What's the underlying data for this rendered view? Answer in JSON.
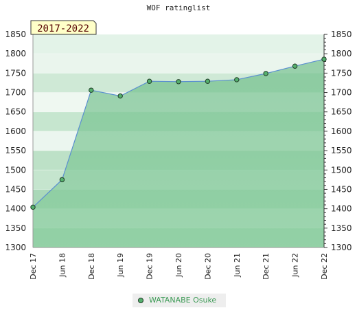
{
  "title": "WOF ratinglist",
  "badge": "2017-2022",
  "colors": {
    "fill": "#7cc494",
    "line": "#5b8fd0",
    "marker": "#55b06e",
    "badge_bg": "#ffffc8"
  },
  "chart_data": {
    "type": "area",
    "title": "WOF ratinglist",
    "categories": [
      "Dec 17",
      "Jun 18",
      "Dec 18",
      "Jun 19",
      "Dec 19",
      "Jun 20",
      "Dec 20",
      "Jun 21",
      "Dec 21",
      "Jun 22",
      "Dec 22"
    ],
    "series": [
      {
        "name": "WATANABE Osuke",
        "values": [
          1404,
          1475,
          1706,
          1691,
          1729,
          1728,
          1729,
          1733,
          1749,
          1768,
          1786
        ]
      }
    ],
    "ylim": [
      1300,
      1850
    ],
    "yticks": [
      1300,
      1350,
      1400,
      1450,
      1500,
      1550,
      1600,
      1650,
      1700,
      1750,
      1800,
      1850
    ],
    "xlabel": "",
    "ylabel": "",
    "grid": true,
    "legend": "bottom"
  }
}
